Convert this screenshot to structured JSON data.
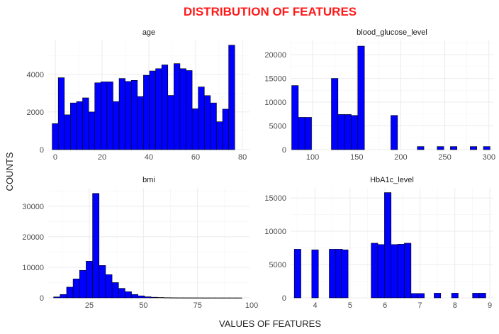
{
  "title": "DISTRIBUTION OF FEATURES",
  "xlabel": "VALUES OF FEATURES",
  "ylabel": "COUNTS",
  "colors": {
    "title": "#ff1a1a",
    "bar_fill": "#0000ff",
    "bar_outline": "#000000"
  },
  "chart_data": [
    {
      "type": "bar",
      "title": "age",
      "bin_width": 2.6,
      "xlim": [
        -3,
        83
      ],
      "ylim": [
        0,
        5800
      ],
      "xticks": [
        0,
        20,
        40,
        60,
        80
      ],
      "yticks": [
        0,
        2000,
        4000
      ],
      "bins": [
        {
          "x": 0,
          "count": 1380
        },
        {
          "x": 2.6,
          "count": 3820
        },
        {
          "x": 5.2,
          "count": 1850
        },
        {
          "x": 7.8,
          "count": 2480
        },
        {
          "x": 10.4,
          "count": 2550
        },
        {
          "x": 13.0,
          "count": 2750
        },
        {
          "x": 15.6,
          "count": 2000
        },
        {
          "x": 18.2,
          "count": 3550
        },
        {
          "x": 20.8,
          "count": 3600
        },
        {
          "x": 23.4,
          "count": 3600
        },
        {
          "x": 26.0,
          "count": 2550
        },
        {
          "x": 28.6,
          "count": 3780
        },
        {
          "x": 31.2,
          "count": 3620
        },
        {
          "x": 33.8,
          "count": 3680
        },
        {
          "x": 36.4,
          "count": 2820
        },
        {
          "x": 39.0,
          "count": 3950
        },
        {
          "x": 41.6,
          "count": 4180
        },
        {
          "x": 44.2,
          "count": 4300
        },
        {
          "x": 46.8,
          "count": 4500
        },
        {
          "x": 49.4,
          "count": 2880
        },
        {
          "x": 52.0,
          "count": 4570
        },
        {
          "x": 54.6,
          "count": 4300
        },
        {
          "x": 57.2,
          "count": 4200
        },
        {
          "x": 59.8,
          "count": 2170
        },
        {
          "x": 62.4,
          "count": 3330
        },
        {
          "x": 65.0,
          "count": 2870
        },
        {
          "x": 67.6,
          "count": 2480
        },
        {
          "x": 70.2,
          "count": 1480
        },
        {
          "x": 72.8,
          "count": 2150
        },
        {
          "x": 75.4,
          "count": 5550
        }
      ]
    },
    {
      "type": "bar",
      "title": "blood_glucose_level",
      "bin_width": 7.5,
      "xlim": [
        75,
        305
      ],
      "ylim": [
        0,
        23000
      ],
      "xticks": [
        100,
        150,
        200,
        250,
        300
      ],
      "yticks": [
        0,
        5000,
        10000,
        15000,
        20000
      ],
      "bins": [
        {
          "x": 80,
          "count": 13500
        },
        {
          "x": 87.5,
          "count": 6800
        },
        {
          "x": 95,
          "count": 6800
        },
        {
          "x": 102.5,
          "count": 0
        },
        {
          "x": 110,
          "count": 0
        },
        {
          "x": 117.5,
          "count": 0
        },
        {
          "x": 125,
          "count": 15000
        },
        {
          "x": 132.5,
          "count": 7400
        },
        {
          "x": 140,
          "count": 7400
        },
        {
          "x": 147.5,
          "count": 7200
        },
        {
          "x": 155,
          "count": 21800
        },
        {
          "x": 162.5,
          "count": 0
        },
        {
          "x": 170,
          "count": 0
        },
        {
          "x": 177.5,
          "count": 0
        },
        {
          "x": 185,
          "count": 0
        },
        {
          "x": 192.5,
          "count": 7200
        },
        {
          "x": 200,
          "count": 0
        },
        {
          "x": 207.5,
          "count": 0
        },
        {
          "x": 215,
          "count": 0
        },
        {
          "x": 222.5,
          "count": 650
        },
        {
          "x": 230,
          "count": 0
        },
        {
          "x": 237.5,
          "count": 0
        },
        {
          "x": 245,
          "count": 650
        },
        {
          "x": 252.5,
          "count": 0
        },
        {
          "x": 260,
          "count": 650
        },
        {
          "x": 267.5,
          "count": 0
        },
        {
          "x": 275,
          "count": 0
        },
        {
          "x": 282.5,
          "count": 650
        },
        {
          "x": 290,
          "count": 0
        },
        {
          "x": 297.5,
          "count": 650
        }
      ]
    },
    {
      "type": "bar",
      "title": "bmi",
      "bin_width": 3.0,
      "xlim": [
        6,
        99
      ],
      "ylim": [
        0,
        36000
      ],
      "xticks": [
        25,
        50,
        75,
        100
      ],
      "yticks": [
        0,
        10000,
        20000,
        30000
      ],
      "bins": [
        {
          "x": 10,
          "count": 300
        },
        {
          "x": 13,
          "count": 1100
        },
        {
          "x": 16,
          "count": 3500
        },
        {
          "x": 19,
          "count": 6200
        },
        {
          "x": 22,
          "count": 9000
        },
        {
          "x": 25,
          "count": 12000
        },
        {
          "x": 28,
          "count": 34200
        },
        {
          "x": 31,
          "count": 10600
        },
        {
          "x": 34,
          "count": 7600
        },
        {
          "x": 37,
          "count": 5000
        },
        {
          "x": 40,
          "count": 3100
        },
        {
          "x": 43,
          "count": 2000
        },
        {
          "x": 46,
          "count": 1100
        },
        {
          "x": 49,
          "count": 650
        },
        {
          "x": 52,
          "count": 350
        },
        {
          "x": 55,
          "count": 200
        },
        {
          "x": 58,
          "count": 120
        },
        {
          "x": 61,
          "count": 60
        },
        {
          "x": 64,
          "count": 30
        },
        {
          "x": 67,
          "count": 20
        },
        {
          "x": 70,
          "count": 15
        },
        {
          "x": 73,
          "count": 10
        },
        {
          "x": 76,
          "count": 8
        },
        {
          "x": 79,
          "count": 5
        },
        {
          "x": 82,
          "count": 4
        },
        {
          "x": 85,
          "count": 3
        },
        {
          "x": 88,
          "count": 2
        },
        {
          "x": 91,
          "count": 2
        },
        {
          "x": 94,
          "count": 1
        }
      ]
    },
    {
      "type": "bar",
      "title": "HbA1c_level",
      "bin_width": 0.19,
      "xlim": [
        3.3,
        9.1
      ],
      "ylim": [
        0,
        16500
      ],
      "xticks": [
        4,
        5,
        6,
        7,
        8,
        9
      ],
      "yticks": [
        0,
        5000,
        10000,
        15000
      ],
      "bins": [
        {
          "x": 3.5,
          "count": 7300
        },
        {
          "x": 3.69,
          "count": 0
        },
        {
          "x": 3.88,
          "count": 0
        },
        {
          "x": 4.0,
          "count": 7200
        },
        {
          "x": 4.19,
          "count": 0
        },
        {
          "x": 4.38,
          "count": 0
        },
        {
          "x": 4.5,
          "count": 7300
        },
        {
          "x": 4.69,
          "count": 7300
        },
        {
          "x": 4.85,
          "count": 7200
        },
        {
          "x": 5.04,
          "count": 0
        },
        {
          "x": 5.23,
          "count": 0
        },
        {
          "x": 5.42,
          "count": 0
        },
        {
          "x": 5.7,
          "count": 8200
        },
        {
          "x": 5.89,
          "count": 8000
        },
        {
          "x": 6.08,
          "count": 15800
        },
        {
          "x": 6.27,
          "count": 8000
        },
        {
          "x": 6.46,
          "count": 8050
        },
        {
          "x": 6.65,
          "count": 8200
        },
        {
          "x": 6.84,
          "count": 650
        },
        {
          "x": 7.03,
          "count": 650
        },
        {
          "x": 7.22,
          "count": 0
        },
        {
          "x": 7.5,
          "count": 700
        },
        {
          "x": 7.69,
          "count": 0
        },
        {
          "x": 7.88,
          "count": 0
        },
        {
          "x": 8.0,
          "count": 700
        },
        {
          "x": 8.19,
          "count": 0
        },
        {
          "x": 8.38,
          "count": 0
        },
        {
          "x": 8.6,
          "count": 700
        },
        {
          "x": 8.79,
          "count": 700
        }
      ]
    }
  ]
}
